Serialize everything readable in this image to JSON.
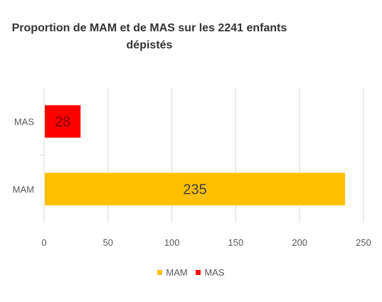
{
  "chart_data": {
    "type": "bar",
    "orientation": "horizontal",
    "title_line1": "Proportion  de MAM et de MAS sur les 2241 enfants",
    "title_line2": "dépistés",
    "categories": [
      "MAS",
      "MAM"
    ],
    "series": [
      {
        "name": "MAM",
        "category": "MAM",
        "value": 235,
        "color": "#FFC000"
      },
      {
        "name": "MAS",
        "category": "MAS",
        "value": 28,
        "color": "#FF0000"
      }
    ],
    "xlim": [
      0,
      250
    ],
    "xticks": [
      "0",
      "50",
      "100",
      "150",
      "200",
      "250"
    ],
    "grid": true,
    "legend_position": "bottom",
    "data_label_colors": {
      "MAM": "#404040",
      "MAS": "#7f0000"
    }
  }
}
